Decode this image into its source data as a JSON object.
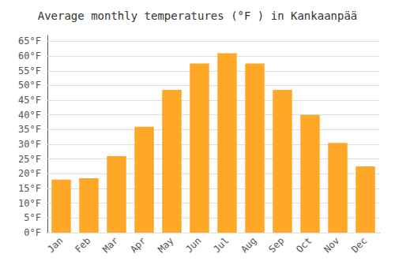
{
  "chart_data": {
    "type": "bar",
    "title": "Average monthly temperatures (°F ) in Kankaanpää",
    "categories": [
      "Jan",
      "Feb",
      "Mar",
      "Apr",
      "May",
      "Jun",
      "Jul",
      "Aug",
      "Sep",
      "Oct",
      "Nov",
      "Dec"
    ],
    "values": [
      18,
      18.5,
      26,
      36,
      48.5,
      57.5,
      61,
      57.5,
      48.5,
      40,
      30.5,
      22.5
    ],
    "color": "#FFA726",
    "ylim": [
      0,
      67
    ],
    "yticks": [
      {
        "value": 0,
        "label": "0°F"
      },
      {
        "value": 5,
        "label": "5°F"
      },
      {
        "value": 10,
        "label": "10°F"
      },
      {
        "value": 15,
        "label": "15°F"
      },
      {
        "value": 20,
        "label": "20°F"
      },
      {
        "value": 25,
        "label": "25°F"
      },
      {
        "value": 30,
        "label": "30°F"
      },
      {
        "value": 35,
        "label": "35°F"
      },
      {
        "value": 40,
        "label": "40°F"
      },
      {
        "value": 45,
        "label": "45°F"
      },
      {
        "value": 50,
        "label": "50°F"
      },
      {
        "value": 55,
        "label": "55°F"
      },
      {
        "value": 60,
        "label": "60°F"
      },
      {
        "value": 65,
        "label": "65°F"
      }
    ],
    "grid": true
  }
}
